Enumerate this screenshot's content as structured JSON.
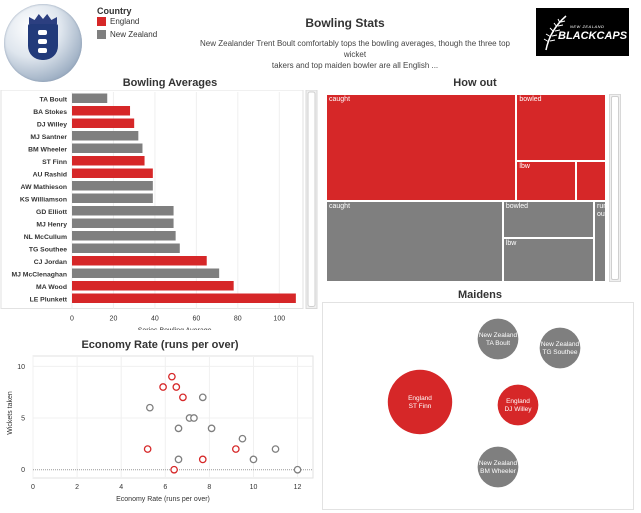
{
  "colors": {
    "england": "#d62728",
    "new_zealand": "#7f7f7f"
  },
  "header": {
    "title": "Bowling Stats",
    "subtitle_line1": "New Zealander Trent Boult comfortably tops the bowling averages, though the three top wicket",
    "subtitle_line2": "takers and top maiden bowler are all English ...",
    "legend_title": "Country",
    "legend": [
      {
        "label": "England",
        "color": "#d62728"
      },
      {
        "label": "New Zealand",
        "color": "#7f7f7f"
      }
    ],
    "bc_logo_small": "NEW ZEALAND",
    "bc_logo_big": "BLACKCAPS"
  },
  "chart_data": [
    {
      "type": "bar",
      "title": "Bowling Averages",
      "xlabel": "Series Bowling Average",
      "ylabel": "",
      "xlim": [
        0,
        110
      ],
      "xticks": [
        0,
        20,
        40,
        60,
        80,
        100
      ],
      "categories": [
        "TA Boult",
        "BA Stokes",
        "DJ Willey",
        "MJ Santner",
        "BM Wheeler",
        "ST Finn",
        "AU Rashid",
        "AW Mathieson",
        "KS Williamson",
        "GD Elliott",
        "MJ Henry",
        "NL McCullum",
        "TG Southee",
        "CJ Jordan",
        "MJ McClenaghan",
        "MA Wood",
        "LE Plunkett"
      ],
      "values": [
        17,
        28,
        30,
        32,
        34,
        35,
        39,
        39,
        39,
        49,
        49,
        50,
        52,
        65,
        71,
        78,
        108
      ],
      "country": [
        "New Zealand",
        "England",
        "England",
        "New Zealand",
        "New Zealand",
        "England",
        "England",
        "New Zealand",
        "New Zealand",
        "New Zealand",
        "New Zealand",
        "New Zealand",
        "New Zealand",
        "England",
        "New Zealand",
        "England",
        "England"
      ]
    },
    {
      "type": "treemap",
      "title": "How out",
      "groups": [
        {
          "country": "England",
          "cells": [
            {
              "label": "caught",
              "value": 34
            },
            {
              "label": "bowled",
              "value": 10
            },
            {
              "label": "lbw",
              "value": 4
            },
            {
              "label": "",
              "value": 2
            }
          ]
        },
        {
          "country": "New Zealand",
          "cells": [
            {
              "label": "caught",
              "value": 24
            },
            {
              "label": "bowled",
              "value": 6
            },
            {
              "label": "lbw",
              "value": 7
            },
            {
              "label": "run out",
              "value": 1
            }
          ]
        }
      ]
    },
    {
      "type": "bubble",
      "title": "Maidens",
      "bubbles": [
        {
          "country": "England",
          "player": "ST Finn",
          "value": 5
        },
        {
          "country": "New Zealand",
          "player": "TA Boult",
          "value": 2
        },
        {
          "country": "New Zealand",
          "player": "TG Southee",
          "value": 2
        },
        {
          "country": "England",
          "player": "DJ Willey",
          "value": 2
        },
        {
          "country": "New Zealand",
          "player": "BM Wheeler",
          "value": 2
        }
      ]
    },
    {
      "type": "scatter",
      "title": "Economy Rate (runs per over)",
      "xlabel": "Economy Rate (runs per over)",
      "ylabel": "Wickets taken",
      "xlim": [
        0,
        12.7
      ],
      "ylim": [
        -0.8,
        11
      ],
      "xticks": [
        0,
        2,
        4,
        6,
        8,
        10,
        12
      ],
      "yticks": [
        0,
        5,
        10
      ],
      "grid": true,
      "points": [
        {
          "x": 6.3,
          "y": 9,
          "country": "England"
        },
        {
          "x": 5.9,
          "y": 8,
          "country": "England"
        },
        {
          "x": 6.5,
          "y": 8,
          "country": "England"
        },
        {
          "x": 6.8,
          "y": 7,
          "country": "England"
        },
        {
          "x": 7.7,
          "y": 7,
          "country": "New Zealand"
        },
        {
          "x": 5.3,
          "y": 6,
          "country": "New Zealand"
        },
        {
          "x": 7.1,
          "y": 5,
          "country": "New Zealand"
        },
        {
          "x": 7.3,
          "y": 5,
          "country": "New Zealand"
        },
        {
          "x": 6.6,
          "y": 4,
          "country": "New Zealand"
        },
        {
          "x": 8.1,
          "y": 4,
          "country": "New Zealand"
        },
        {
          "x": 9.5,
          "y": 3,
          "country": "New Zealand"
        },
        {
          "x": 5.2,
          "y": 2,
          "country": "England"
        },
        {
          "x": 9.2,
          "y": 2,
          "country": "England"
        },
        {
          "x": 11.0,
          "y": 2,
          "country": "New Zealand"
        },
        {
          "x": 6.6,
          "y": 1,
          "country": "New Zealand"
        },
        {
          "x": 7.7,
          "y": 1,
          "country": "England"
        },
        {
          "x": 10.0,
          "y": 1,
          "country": "New Zealand"
        },
        {
          "x": 6.4,
          "y": 0,
          "country": "England"
        },
        {
          "x": 12.0,
          "y": 0,
          "country": "New Zealand"
        }
      ]
    }
  ]
}
